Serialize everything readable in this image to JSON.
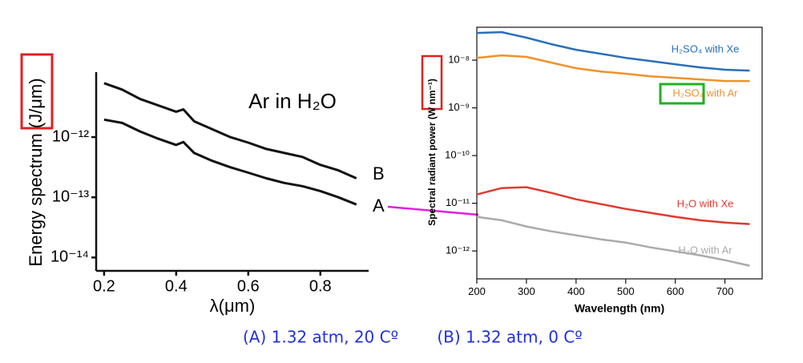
{
  "chart_data": [
    {
      "type": "line",
      "annotation": "Ar in H₂O",
      "x_label": "λ(μm)",
      "y_label": "Energy spectrum (J/μm)",
      "log_y": true,
      "xlim": [
        0.178,
        0.934
      ],
      "xticks": [
        0.2,
        0.4,
        0.6,
        0.8
      ],
      "ylim": [
        6e-15,
        1.2e-11
      ],
      "yticks": [
        {
          "value": 1e-12,
          "label": "10⁻¹²"
        },
        {
          "value": 1e-13,
          "label": "10⁻¹³"
        },
        {
          "value": 1e-14,
          "label": "10⁻¹⁴"
        }
      ],
      "x": [
        0.2,
        0.25,
        0.3,
        0.35,
        0.4,
        0.42,
        0.45,
        0.5,
        0.55,
        0.6,
        0.65,
        0.7,
        0.75,
        0.8,
        0.85,
        0.9
      ],
      "series": [
        {
          "name": "B",
          "color": "#111111",
          "values": [
            7.85e-12,
            6.15e-12,
            4.28e-12,
            3.36e-12,
            2.64e-12,
            2.89e-12,
            1.83e-12,
            1.35e-12,
            1e-12,
            8.1e-13,
            6.35e-13,
            5.45e-13,
            4.69e-13,
            3.46e-13,
            2.8e-13,
            2.07e-13
          ]
        },
        {
          "name": "A",
          "color": "#111111",
          "values": [
            1.95e-12,
            1.72e-12,
            1.24e-12,
            9.4e-13,
            7.4e-13,
            8.3e-13,
            5.45e-13,
            4.03e-13,
            3.16e-13,
            2.56e-13,
            2.07e-13,
            1.73e-13,
            1.53e-13,
            1.27e-13,
            1e-13,
            7.6e-14
          ]
        }
      ]
    },
    {
      "type": "line",
      "x_label": "Wavelength (nm)",
      "y_label": "Spectral radiant power (W nm⁻¹)",
      "log_y": true,
      "xlim": [
        200,
        775
      ],
      "xticks": [
        200,
        300,
        400,
        500,
        600,
        700
      ],
      "ylim": [
        2.6e-13,
        4.9e-08
      ],
      "yticks": [
        {
          "value": 1e-08,
          "label": "10⁻⁸"
        },
        {
          "value": 1e-09,
          "label": "10⁻⁹"
        },
        {
          "value": 1e-10,
          "label": "10⁻¹⁰"
        },
        {
          "value": 1e-11,
          "label": "10⁻¹¹"
        },
        {
          "value": 1e-12,
          "label": "10⁻¹²"
        }
      ],
      "x": [
        200,
        250,
        300,
        350,
        400,
        450,
        500,
        550,
        600,
        650,
        700,
        750
      ],
      "series": [
        {
          "name": "H₂SO₄ with Xe",
          "color": "#2a6fba",
          "values": [
            3.73e-08,
            3.87e-08,
            2.96e-08,
            2.17e-08,
            1.65e-08,
            1.36e-08,
            1.12e-08,
            9.6e-09,
            8.2e-09,
            7.06e-09,
            6.3e-09,
            6.05e-09
          ]
        },
        {
          "name": "H₂SO₄ with Ar",
          "color": "#f0922b",
          "values": [
            1.12e-08,
            1.26e-08,
            1.17e-08,
            8.9e-09,
            6.8e-09,
            5.8e-09,
            5.2e-09,
            4.6e-09,
            4.27e-09,
            3.95e-09,
            3.66e-09,
            3.66e-09
          ]
        },
        {
          "name": "H₂O with Xe",
          "color": "#e03a2f",
          "values": [
            1.53e-11,
            2.08e-11,
            2.17e-11,
            1.65e-11,
            1.21e-11,
            9.6e-12,
            7.6e-12,
            6.3e-12,
            5.2e-12,
            4.4e-12,
            3.95e-12,
            3.66e-12
          ]
        },
        {
          "name": "H₂O with Ar",
          "color": "#aaaaaa",
          "values": [
            5.2e-12,
            4.4e-12,
            3.26e-12,
            2.58e-12,
            2.13e-12,
            1.75e-12,
            1.5e-12,
            1.19e-12,
            9.8e-13,
            8.1e-13,
            6.4e-13,
            4.9e-13
          ]
        }
      ]
    }
  ],
  "caption": [
    "(A) 1.32 atm, 20 Cº",
    "(B) 1.32 atm, 0 Cº"
  ]
}
